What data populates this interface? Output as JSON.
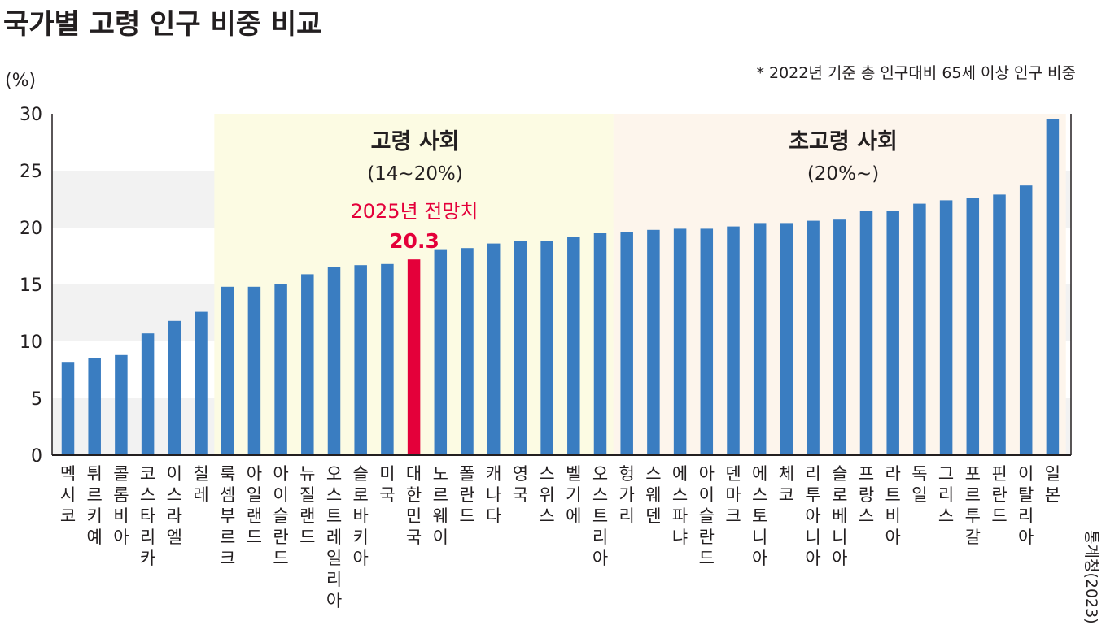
{
  "chart_data": {
    "type": "bar",
    "title": "국가별 고령 인구 비중 비교",
    "ylabel": "(%)",
    "note": "* 2022년 기준 총 인구대비 65세 이상 인구 비중",
    "source": "통계청(2023)",
    "ylim": [
      0,
      30
    ],
    "yticks": [
      "0",
      "5",
      "10",
      "15",
      "20",
      "25",
      "30"
    ],
    "grid": "alternating horizontal bands",
    "categories": [
      "멕시코",
      "튀르키예",
      "콜롬비아",
      "코스타리카",
      "이스라엘",
      "칠레",
      "룩셈부르크",
      "아일랜드",
      "아이슬란드",
      "뉴질랜드",
      "오스트레일리아",
      "슬로바키아",
      "미국",
      "대한민국",
      "노르웨이",
      "폴란드",
      "캐나다",
      "영국",
      "스위스",
      "벨기에",
      "오스트리아",
      "헝가리",
      "스웨덴",
      "에스파냐",
      "아이슬란드",
      "덴마크",
      "에스토니아",
      "체코",
      "리투아니아",
      "슬로베니아",
      "프랑스",
      "라트비아",
      "독일",
      "그리스",
      "포르투갈",
      "핀란드",
      "이탈리아",
      "일본"
    ],
    "values": [
      8.2,
      8.5,
      8.8,
      10.7,
      11.8,
      12.6,
      14.8,
      14.8,
      15.0,
      15.9,
      16.5,
      16.7,
      16.8,
      17.2,
      18.1,
      18.2,
      18.6,
      18.8,
      18.8,
      19.2,
      19.5,
      19.6,
      19.8,
      19.9,
      19.9,
      20.1,
      20.4,
      20.4,
      20.6,
      20.7,
      21.5,
      21.5,
      22.1,
      22.4,
      22.6,
      22.9,
      23.7,
      29.5
    ],
    "highlight": {
      "category": "대한민국",
      "label": "2025년 전망치",
      "value_label": "20.3",
      "color": "#e4003a"
    },
    "zones": [
      {
        "title": "고령 사회",
        "range": "(14~20%)",
        "color": "#fcfbe3"
      },
      {
        "title": "초고령 사회",
        "range": "(20%~)",
        "color": "#fdf5ec"
      }
    ],
    "bar_color": "#3a7dc1",
    "band_color": "#f2f2f2"
  }
}
